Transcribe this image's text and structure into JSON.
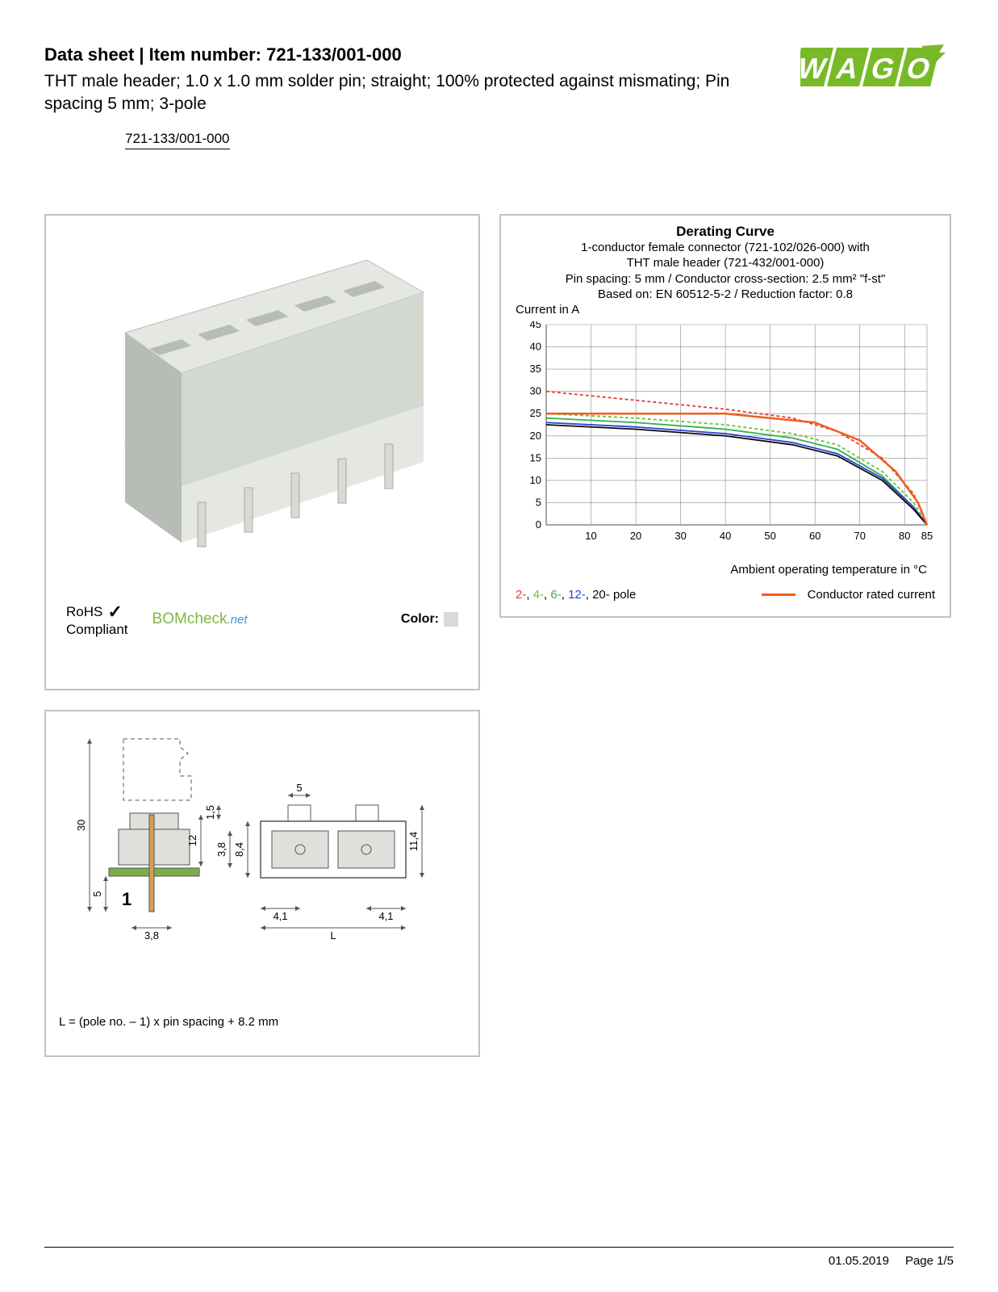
{
  "header": {
    "title": "Data sheet  |  Item number: 721-133/001-000",
    "subtitle": "THT male header; 1.0 x 1.0 mm solder pin; straight; 100% protected against mismating; Pin spacing 5 mm; 3-pole",
    "item_link": "721-133/001-000"
  },
  "logo": {
    "text": "WAGO",
    "fill": "#78b928"
  },
  "product_panel": {
    "rohs_top": "RoHS",
    "rohs_bottom": "Compliant",
    "check": "✓",
    "bomcheck_main": "BOMcheck",
    "bomcheck_net": ".net",
    "color_label": "Color:",
    "swatch_color": "#d7dbd6",
    "body_color": "#d3d8d0",
    "pin_color": "#d8dad5"
  },
  "chart": {
    "title": "Derating Curve",
    "sub1": "1-conductor female connector (721-102/026-000) with",
    "sub2": "THT male header (721-432/001-000)",
    "sub3": "Pin spacing: 5 mm / Conductor cross-section: 2.5 mm² \"f-st\"",
    "sub4": "Based on: EN 60512-5-2 / Reduction factor: 0.8",
    "y_axis_label": "Current in A",
    "x_axis_label": "Ambient operating temperature in °C",
    "y_max": 45,
    "y_ticks": [
      0,
      5,
      10,
      15,
      20,
      25,
      30,
      35,
      40,
      45
    ],
    "x_ticks": [
      10,
      20,
      30,
      40,
      50,
      60,
      70,
      80,
      85
    ],
    "grid_color": "#8a8a8a",
    "bg_color": "#ffffff",
    "series": {
      "rated": {
        "color": "#f25c1a",
        "width": 2.5,
        "dash": "",
        "points": [
          [
            0,
            25
          ],
          [
            20,
            25
          ],
          [
            30,
            25
          ],
          [
            40,
            25
          ],
          [
            60,
            23
          ],
          [
            70,
            19
          ],
          [
            78,
            12
          ],
          [
            83,
            5
          ],
          [
            85,
            0
          ]
        ]
      },
      "pole2": {
        "color": "#e73a3a",
        "width": 1.8,
        "dash": "4 3",
        "points": [
          [
            0,
            30
          ],
          [
            20,
            28
          ],
          [
            40,
            26
          ],
          [
            55,
            24
          ],
          [
            65,
            21
          ],
          [
            75,
            15
          ],
          [
            82,
            7
          ],
          [
            85,
            0
          ]
        ]
      },
      "pole4": {
        "color": "#6bbf3a",
        "width": 1.8,
        "dash": "4 3",
        "points": [
          [
            0,
            25
          ],
          [
            20,
            24
          ],
          [
            40,
            22.5
          ],
          [
            55,
            20.5
          ],
          [
            65,
            18
          ],
          [
            75,
            12
          ],
          [
            82,
            5
          ],
          [
            85,
            0
          ]
        ]
      },
      "pole6": {
        "color": "#2bb24c",
        "width": 1.8,
        "dash": "",
        "points": [
          [
            0,
            24
          ],
          [
            20,
            23
          ],
          [
            40,
            21.5
          ],
          [
            55,
            19.5
          ],
          [
            65,
            17
          ],
          [
            75,
            11
          ],
          [
            82,
            4
          ],
          [
            85,
            0
          ]
        ]
      },
      "pole12": {
        "color": "#2a3ed1",
        "width": 1.8,
        "dash": "",
        "points": [
          [
            0,
            23
          ],
          [
            20,
            22
          ],
          [
            40,
            20.5
          ],
          [
            55,
            18.5
          ],
          [
            65,
            16
          ],
          [
            75,
            10.5
          ],
          [
            82,
            4
          ],
          [
            85,
            0
          ]
        ]
      },
      "pole20": {
        "color": "#0a0a0a",
        "width": 1.8,
        "dash": "",
        "points": [
          [
            0,
            22.5
          ],
          [
            20,
            21.5
          ],
          [
            40,
            20
          ],
          [
            55,
            18
          ],
          [
            65,
            15.5
          ],
          [
            75,
            10
          ],
          [
            82,
            3.5
          ],
          [
            85,
            0
          ]
        ]
      }
    },
    "legend": {
      "p2": {
        "text": "2-",
        "color": "#e73a3a"
      },
      "p4": {
        "text": "4-",
        "color": "#6bbf3a"
      },
      "p6": {
        "text": "6-",
        "color": "#2bb24c"
      },
      "p12": {
        "text": "12-",
        "color": "#2a3ed1"
      },
      "p20": {
        "text": "20-",
        "color": "#0a0a0a"
      },
      "pole_label": " pole",
      "rated_label": "Conductor rated current",
      "rated_color": "#f25c1a"
    }
  },
  "drawing": {
    "dims": {
      "h_total": "30",
      "h_1p5": "1,5",
      "h_12": "12",
      "h_5": "5",
      "w_3p8": "3,8",
      "t_8p4": "8,4",
      "t_3p8": "3,8",
      "t_5": "5",
      "t_4p1a": "4,1",
      "t_4p1b": "4,1",
      "t_L": "L",
      "t_11p4": "11,4",
      "arrow": "1"
    },
    "line_color": "#555555",
    "body_fill": "#dde0db",
    "pcb_color": "#7bae4a",
    "pin_color": "#d89b5a",
    "formula": "L = (pole no. – 1) x pin spacing + 8.2 mm"
  },
  "footer": {
    "date": "01.05.2019",
    "page": "Page 1/5"
  }
}
